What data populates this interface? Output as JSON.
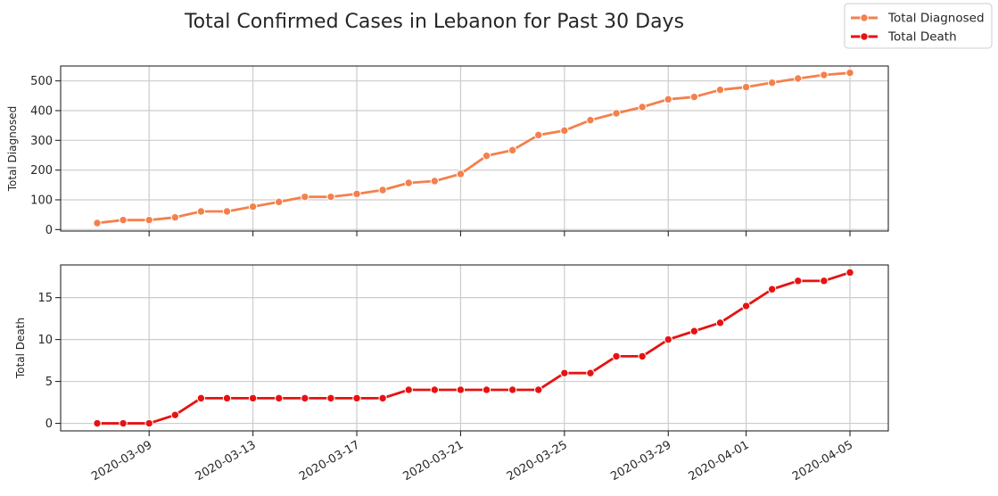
{
  "chart_data": {
    "type": "line",
    "title": "Total Confirmed Cases in Lebanon for Past 30 Days",
    "x": [
      "2020-03-07",
      "2020-03-08",
      "2020-03-09",
      "2020-03-10",
      "2020-03-11",
      "2020-03-12",
      "2020-03-13",
      "2020-03-14",
      "2020-03-15",
      "2020-03-16",
      "2020-03-17",
      "2020-03-18",
      "2020-03-19",
      "2020-03-20",
      "2020-03-21",
      "2020-03-22",
      "2020-03-23",
      "2020-03-24",
      "2020-03-25",
      "2020-03-26",
      "2020-03-27",
      "2020-03-28",
      "2020-03-29",
      "2020-03-30",
      "2020-03-31",
      "2020-04-01",
      "2020-04-02",
      "2020-04-03",
      "2020-04-04",
      "2020-04-05"
    ],
    "x_ticks": [
      "2020-03-09",
      "2020-03-13",
      "2020-03-17",
      "2020-03-21",
      "2020-03-25",
      "2020-03-29",
      "2020-04-01",
      "2020-04-05"
    ],
    "legend": {
      "placement": "top-right",
      "entries": [
        "Total Diagnosed",
        "Total Death"
      ]
    },
    "grid": true,
    "panels": [
      {
        "ylabel": "Total Diagnosed",
        "ylim": [
          -5,
          550
        ],
        "yticks": [
          0,
          100,
          200,
          300,
          400,
          500
        ],
        "show_x_labels": false,
        "series": {
          "name": "Total Diagnosed",
          "color": "#f4804c",
          "values": [
            22,
            32,
            32,
            41,
            61,
            61,
            77,
            93,
            110,
            110,
            120,
            133,
            157,
            163,
            187,
            248,
            267,
            318,
            333,
            368,
            391,
            412,
            438,
            446,
            470,
            479,
            494,
            508,
            520,
            527
          ]
        }
      },
      {
        "ylabel": "Total Death",
        "ylim": [
          -0.9,
          18.9
        ],
        "yticks": [
          0,
          5,
          10,
          15
        ],
        "show_x_labels": true,
        "series": {
          "name": "Total Death",
          "color": "#e61212",
          "values": [
            0,
            0,
            0,
            1,
            3,
            3,
            3,
            3,
            3,
            3,
            3,
            3,
            4,
            4,
            4,
            4,
            4,
            4,
            6,
            6,
            8,
            8,
            10,
            11,
            12,
            14,
            16,
            17,
            17,
            18
          ]
        }
      }
    ]
  }
}
